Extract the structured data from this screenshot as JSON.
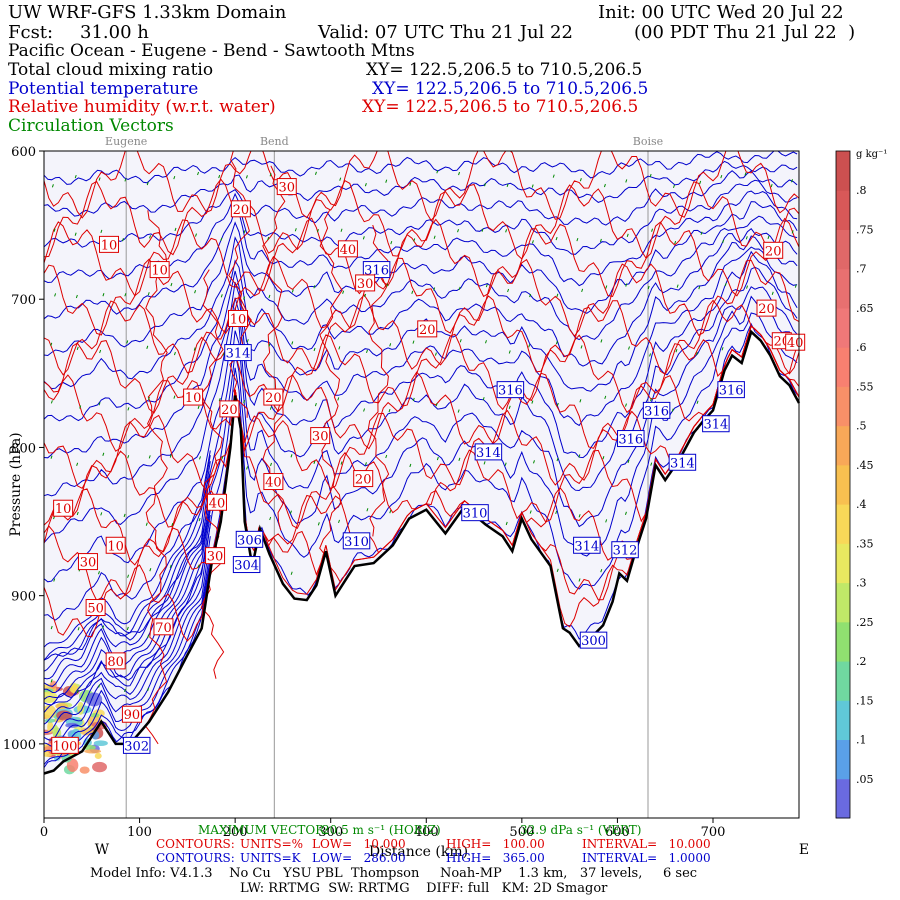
{
  "header": {
    "model": "UW WRF-GFS 1.33km Domain",
    "init": "Init: 00 UTC Wed 20 Jul 22",
    "fcst_label": "Fcst:",
    "fcst_value": "31.00 h",
    "valid": "Valid: 07 UTC Thu 21 Jul 22",
    "valid_local": "(00 PDT Thu 21 Jul 22  )",
    "region": "Pacific Ocean - Eugene - Bend - Sawtooth Mtns",
    "field1": "Total cloud mixing ratio",
    "field1_xy": "XY= 122.5,206.5 to 710.5,206.5",
    "field2": "Potential temperature",
    "field2_xy": "XY= 122.5,206.5 to 710.5,206.5",
    "field3": "Relative humidity (w.r.t. water)",
    "field3_xy": "XY= 122.5,206.5 to 710.5,206.5",
    "field4": "Circulation Vectors"
  },
  "colors": {
    "pt": "#0000cc",
    "rh": "#dd0000",
    "vec": "#008800",
    "terrain": "#000000",
    "bg": "#f4f4fb",
    "grid": "#999999"
  },
  "chart_data": {
    "type": "cross-section",
    "title": "UW WRF-GFS 1.33km Domain",
    "xlabel": "Distance (km)",
    "ylabel": "Pressure (hPa)",
    "x_range": [
      0,
      790
    ],
    "y_range": [
      1050,
      600
    ],
    "xticks": [
      0,
      100,
      200,
      300,
      400,
      500,
      600,
      700
    ],
    "yticks": [
      600,
      700,
      800,
      900,
      1000
    ],
    "ytick_labels": [
      "600",
      "700",
      "800",
      "900",
      "1000"
    ],
    "left_end": "W",
    "right_end": "E",
    "cities": [
      {
        "name": "Eugene",
        "x": 86
      },
      {
        "name": "Bend",
        "x": 241
      },
      {
        "name": "Boise",
        "x": 632
      }
    ],
    "terrain": [
      [
        0,
        1020
      ],
      [
        10,
        1018
      ],
      [
        20,
        1012
      ],
      [
        40,
        1005
      ],
      [
        60,
        985
      ],
      [
        75,
        1000
      ],
      [
        90,
        1000
      ],
      [
        110,
        985
      ],
      [
        130,
        965
      ],
      [
        150,
        940
      ],
      [
        165,
        922
      ],
      [
        175,
        880
      ],
      [
        185,
        850
      ],
      [
        195,
        800
      ],
      [
        200,
        765
      ],
      [
        206,
        788
      ],
      [
        210,
        850
      ],
      [
        218,
        880
      ],
      [
        226,
        855
      ],
      [
        236,
        872
      ],
      [
        250,
        892
      ],
      [
        262,
        902
      ],
      [
        275,
        903
      ],
      [
        285,
        893
      ],
      [
        295,
        870
      ],
      [
        305,
        900
      ],
      [
        315,
        890
      ],
      [
        325,
        880
      ],
      [
        345,
        878
      ],
      [
        365,
        866
      ],
      [
        382,
        848
      ],
      [
        400,
        842
      ],
      [
        420,
        858
      ],
      [
        440,
        840
      ],
      [
        462,
        852
      ],
      [
        480,
        860
      ],
      [
        490,
        870
      ],
      [
        500,
        848
      ],
      [
        510,
        862
      ],
      [
        530,
        880
      ],
      [
        543,
        922
      ],
      [
        550,
        925
      ],
      [
        560,
        934
      ],
      [
        570,
        930
      ],
      [
        585,
        920
      ],
      [
        595,
        904
      ],
      [
        602,
        885
      ],
      [
        610,
        890
      ],
      [
        620,
        868
      ],
      [
        630,
        848
      ],
      [
        640,
        812
      ],
      [
        650,
        822
      ],
      [
        665,
        808
      ],
      [
        680,
        790
      ],
      [
        690,
        782
      ],
      [
        700,
        775
      ],
      [
        712,
        748
      ],
      [
        720,
        738
      ],
      [
        730,
        743
      ],
      [
        740,
        722
      ],
      [
        750,
        728
      ],
      [
        760,
        738
      ],
      [
        770,
        752
      ],
      [
        780,
        758
      ],
      [
        790,
        770
      ]
    ],
    "cloud_region": {
      "x": [
        0,
        60
      ],
      "p": [
        960,
        1020
      ],
      "max_mixing_ratio_g_kg": 0.85
    },
    "series": [
      {
        "name": "Potential temperature (K)",
        "contour_low": 286.0,
        "contour_high": 365.0,
        "interval": 1.0,
        "labels": [
          {
            "text": "316",
            "x": 348,
            "p": 680
          },
          {
            "text": "314",
            "x": 203,
            "p": 736
          },
          {
            "text": "316",
            "x": 488,
            "p": 761
          },
          {
            "text": "316",
            "x": 641,
            "p": 775
          },
          {
            "text": "316",
            "x": 719,
            "p": 761
          },
          {
            "text": "316",
            "x": 614,
            "p": 794
          },
          {
            "text": "314",
            "x": 703,
            "p": 784
          },
          {
            "text": "314",
            "x": 465,
            "p": 803
          },
          {
            "text": "314",
            "x": 668,
            "p": 810
          },
          {
            "text": "310",
            "x": 451,
            "p": 844
          },
          {
            "text": "310",
            "x": 327,
            "p": 863
          },
          {
            "text": "306",
            "x": 215,
            "p": 862
          },
          {
            "text": "304",
            "x": 212,
            "p": 879
          },
          {
            "text": "314",
            "x": 568,
            "p": 866
          },
          {
            "text": "312",
            "x": 608,
            "p": 869
          },
          {
            "text": "300",
            "x": 575,
            "p": 930
          },
          {
            "text": "302",
            "x": 97,
            "p": 1001
          }
        ]
      },
      {
        "name": "Relative humidity (%)",
        "contour_low": 10.0,
        "contour_high": 100.0,
        "interval": 10.0,
        "labels": [
          {
            "text": "30",
            "x": 254,
            "p": 624
          },
          {
            "text": "20",
            "x": 206,
            "p": 639
          },
          {
            "text": "10",
            "x": 68,
            "p": 663
          },
          {
            "text": "10",
            "x": 121,
            "p": 680
          },
          {
            "text": "40",
            "x": 318,
            "p": 666
          },
          {
            "text": "30",
            "x": 336,
            "p": 689
          },
          {
            "text": "20",
            "x": 763,
            "p": 667
          },
          {
            "text": "20",
            "x": 756,
            "p": 706
          },
          {
            "text": "10",
            "x": 203,
            "p": 713
          },
          {
            "text": "20",
            "x": 401,
            "p": 720
          },
          {
            "text": "10",
            "x": 156,
            "p": 766
          },
          {
            "text": "20",
            "x": 194,
            "p": 774
          },
          {
            "text": "20",
            "x": 240,
            "p": 766
          },
          {
            "text": "30",
            "x": 289,
            "p": 792
          },
          {
            "text": "40",
            "x": 240,
            "p": 823
          },
          {
            "text": "20",
            "x": 334,
            "p": 821
          },
          {
            "text": "40",
            "x": 181,
            "p": 837
          },
          {
            "text": "10",
            "x": 20,
            "p": 841
          },
          {
            "text": "10",
            "x": 75,
            "p": 866
          },
          {
            "text": "30",
            "x": 46,
            "p": 877
          },
          {
            "text": "30",
            "x": 179,
            "p": 873
          },
          {
            "text": "50",
            "x": 54,
            "p": 908
          },
          {
            "text": "70",
            "x": 125,
            "p": 921
          },
          {
            "text": "80",
            "x": 75,
            "p": 944
          },
          {
            "text": "90",
            "x": 92,
            "p": 980
          },
          {
            "text": "100",
            "x": 22,
            "p": 1001
          },
          {
            "text": "20",
            "x": 772,
            "p": 728
          },
          {
            "text": "40",
            "x": 786,
            "p": 729
          }
        ]
      }
    ],
    "colorbar": {
      "unit": "g kg⁻¹",
      "ticks": [
        ".05",
        ".1",
        ".15",
        ".2",
        ".25",
        ".3",
        ".35",
        ".4",
        ".45",
        ".5",
        ".55",
        ".6",
        ".65",
        ".7",
        ".75",
        ".8"
      ],
      "colors": [
        "#6a6ae0",
        "#5aa0e8",
        "#60c8d8",
        "#70d8a0",
        "#90e070",
        "#c0e868",
        "#e8e860",
        "#f8d858",
        "#f8c050",
        "#f8a858",
        "#f89068",
        "#f88070",
        "#f07878",
        "#e87070",
        "#e06868",
        "#d85858",
        "#cc5050"
      ]
    },
    "footer": {
      "max_vector_label": "MAXIMUM VECTOR:",
      "max_vector_h": "20.5 m s⁻¹ (HORIZ)",
      "max_vector_v": "32.9 dPa s⁻¹ (VERT)",
      "rh_contours": {
        "prefix": "CONTOURS:",
        "units": "UNITS=%",
        "low": "LOW=   10.000",
        "high": "HIGH=   100.00",
        "interval": "INTERVAL=   10.000"
      },
      "pt_contours": {
        "prefix": "CONTOURS:",
        "units": "UNITS=K",
        "low": "LOW=   286.00",
        "high": "HIGH=   365.00",
        "interval": "INTERVAL=   1.0000"
      },
      "model_info": "Model Info: V4.1.3    No Cu   YSU PBL  Thompson     Noah-MP    1.3 km,   37 levels,     6 sec",
      "model_info2": "LW: RRTMG  SW: RRTMG    DIFF: full   KM: 2D Smagor"
    }
  }
}
